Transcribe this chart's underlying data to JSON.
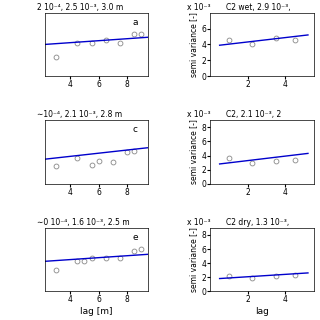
{
  "left_panels": [
    {
      "label": "a",
      "title": "2 10⁻⁴, 2.5 10⁻³, 3.0 m",
      "lag_points": [
        3.0,
        4.5,
        5.5,
        6.5,
        7.5,
        8.5,
        9.0
      ],
      "sv_points": [
        0.00225,
        0.00275,
        0.00275,
        0.00285,
        0.00275,
        0.00305,
        0.00305
      ],
      "fit_x": [
        2.2,
        9.5
      ],
      "fit_y": [
        0.0027,
        0.00295
      ],
      "xlim": [
        2.2,
        9.5
      ],
      "ylim": [
        0.0016,
        0.0038
      ],
      "xticks": [
        4,
        6,
        8
      ],
      "yticks": []
    },
    {
      "label": "c",
      "title": "∼10⁻⁴, 2.1 10⁻³, 2.8 m",
      "lag_points": [
        3.0,
        4.5,
        5.5,
        6.0,
        7.0,
        8.0,
        8.5
      ],
      "sv_points": [
        0.0022,
        0.0025,
        0.00225,
        0.0024,
        0.00235,
        0.0027,
        0.00275
      ],
      "fit_x": [
        2.2,
        9.5
      ],
      "fit_y": [
        0.00245,
        0.00285
      ],
      "xlim": [
        2.2,
        9.5
      ],
      "ylim": [
        0.0016,
        0.0038
      ],
      "xticks": [
        4,
        6,
        8
      ],
      "yticks": []
    },
    {
      "label": "e",
      "title": "∼0 10⁻⁴, 1.6 10⁻³, 2.5 m",
      "lag_points": [
        3.0,
        4.5,
        5.0,
        5.5,
        6.5,
        7.5,
        8.5,
        9.0
      ],
      "sv_points": [
        0.0014,
        0.00165,
        0.00165,
        0.00175,
        0.00175,
        0.00175,
        0.00195,
        0.002
      ],
      "fit_x": [
        2.2,
        9.5
      ],
      "fit_y": [
        0.00165,
        0.00185
      ],
      "xlim": [
        2.2,
        9.5
      ],
      "ylim": [
        0.0008,
        0.0026
      ],
      "xticks": [
        4,
        6,
        8
      ],
      "yticks": [],
      "xlabel": "lag [m]"
    }
  ],
  "right_panels": [
    {
      "title": "C2 wet, 2.9 10⁻³,",
      "lag_points": [
        1.0,
        2.2,
        3.5,
        4.5
      ],
      "sv_points": [
        0.0046,
        0.004,
        0.0048,
        0.0046
      ],
      "fit_x": [
        0.5,
        5.2
      ],
      "fit_y": [
        0.0039,
        0.0052
      ],
      "xlim": [
        0,
        5.5
      ],
      "ylim": [
        0,
        0.008
      ],
      "xticks": [
        2,
        4
      ],
      "yticks": [
        0,
        2,
        4,
        6
      ],
      "ylabel": "semi variance [-]",
      "scale_label": "x 10⁻³"
    },
    {
      "title": "C2, 2.1 10⁻³, 2",
      "lag_points": [
        1.0,
        2.2,
        3.5,
        4.5
      ],
      "sv_points": [
        0.0037,
        0.003,
        0.0032,
        0.0033
      ],
      "fit_x": [
        0.5,
        5.2
      ],
      "fit_y": [
        0.0028,
        0.0043
      ],
      "xlim": [
        0,
        5.5
      ],
      "ylim": [
        0,
        0.009
      ],
      "xticks": [
        2,
        4
      ],
      "yticks": [
        0,
        2,
        4,
        6,
        8
      ],
      "ylabel": "semi variance [-]",
      "scale_label": "x 10⁻³"
    },
    {
      "title": "C2 dry, 1.3 10⁻³,",
      "lag_points": [
        1.0,
        2.2,
        3.5,
        4.5
      ],
      "sv_points": [
        0.0021,
        0.0019,
        0.0021,
        0.0023
      ],
      "fit_x": [
        0.5,
        5.2
      ],
      "fit_y": [
        0.0018,
        0.0026
      ],
      "xlim": [
        0,
        5.5
      ],
      "ylim": [
        0,
        0.009
      ],
      "xticks": [
        2,
        4
      ],
      "yticks": [
        0,
        2,
        4,
        6,
        8
      ],
      "ylabel": "semi variance [-]",
      "scale_label": "x 10⁻³",
      "xlabel": "lag"
    }
  ],
  "line_color": "#0000cc",
  "marker_facecolor": "none",
  "marker_edgecolor": "#888888",
  "bg_color": "#ffffff",
  "fontsize": 6.5
}
